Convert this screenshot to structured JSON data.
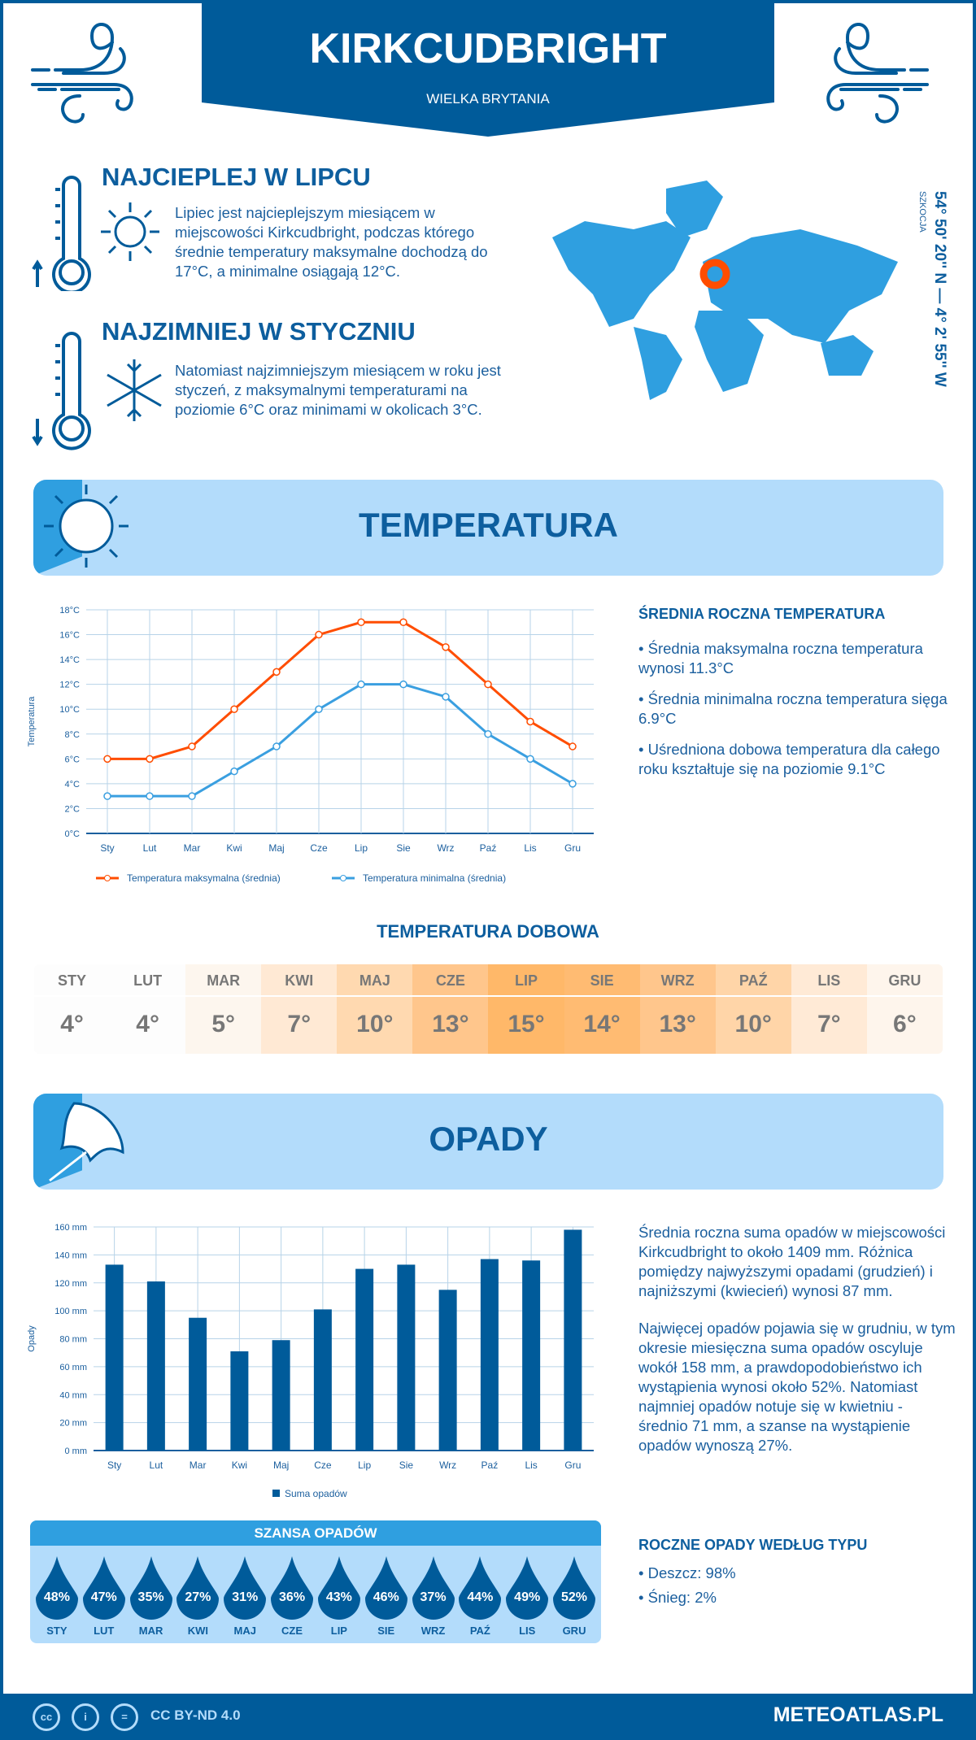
{
  "header": {
    "city": "KIRKCUDBRIGHT",
    "country": "WIELKA BRYTANIA"
  },
  "warmest": {
    "title": "NAJCIEPLEJ W LIPCU",
    "text": "Lipiec jest najcieplejszym miesiącem w miejscowości Kirkcudbright, podczas którego średnie temperatury maksymalne dochodzą do 17°C, a minimalne osiągają 12°C."
  },
  "coldest": {
    "title": "NAJZIMNIEJ W STYCZNIU",
    "text": "Natomiast najzimniejszym miesiącem w roku jest styczeń, z maksymalnymi temperaturami na poziomie 6°C oraz minimami w okolicach 3°C."
  },
  "map": {
    "coords": "54° 50' 20'' N — 4° 2' 55'' W",
    "region": "SZKOCJA",
    "marker_color": "#ff4d00"
  },
  "temp_section": {
    "title": "TEMPERATURA"
  },
  "temp_summary": {
    "heading": "ŚREDNIA ROCZNA TEMPERATURA",
    "items": [
      "• Średnia maksymalna roczna temperatura wynosi 11.3°C",
      "• Średnia minimalna roczna temperatura sięga 6.9°C",
      "• Uśredniona dobowa temperatura dla całego roku kształtuje się na poziomie 9.1°C"
    ]
  },
  "daily": {
    "title": "TEMPERATURA DOBOWA",
    "months": [
      "STY",
      "LUT",
      "MAR",
      "KWI",
      "MAJ",
      "CZE",
      "LIP",
      "SIE",
      "WRZ",
      "PAŹ",
      "LIS",
      "GRU"
    ],
    "values": [
      "4°",
      "4°",
      "5°",
      "7°",
      "10°",
      "13°",
      "15°",
      "14°",
      "13°",
      "10°",
      "7°",
      "6°"
    ],
    "colors": [
      "#fdfdfd",
      "#fdfdfd",
      "#fdf6ee",
      "#ffe9d4",
      "#ffd9b0",
      "#ffc68c",
      "#ffb869",
      "#ffbb72",
      "#ffc68c",
      "#ffd5a8",
      "#ffead6",
      "#fef5ec"
    ]
  },
  "rain_section": {
    "title": "OPADY"
  },
  "rain_summary": {
    "p1": "Średnia roczna suma opadów w miejscowości Kirkcudbright to około 1409 mm. Różnica pomiędzy najwyższymi opadami (grudzień) i najniższymi (kwiecień) wynosi 87 mm.",
    "p2": "Najwięcej opadów pojawia się w grudniu, w tym okresie miesięczna suma opadów oscyluje wokół 158 mm, a prawdopodobieństwo ich wystąpienia wynosi około 52%. Natomiast najmniej opadów notuje się w kwietniu - średnio 71 mm, a szanse na wystąpienie opadów wynoszą 27%."
  },
  "chance": {
    "title": "SZANSA OPADÓW",
    "months": [
      "STY",
      "LUT",
      "MAR",
      "KWI",
      "MAJ",
      "CZE",
      "LIP",
      "SIE",
      "WRZ",
      "PAŹ",
      "LIS",
      "GRU"
    ],
    "values": [
      "48%",
      "47%",
      "35%",
      "27%",
      "31%",
      "36%",
      "43%",
      "46%",
      "37%",
      "44%",
      "49%",
      "52%"
    ]
  },
  "rain_type": {
    "heading": "ROCZNE OPADY WEDŁUG TYPU",
    "items": [
      "• Deszcz: 98%",
      "• Śnieg: 2%"
    ]
  },
  "footer": {
    "license": "CC BY-ND 4.0",
    "brand": "METEOATLAS.PL",
    "icons": [
      "cc-icon",
      "by-icon",
      "nd-icon"
    ]
  },
  "chart_data": [
    {
      "type": "line",
      "categories": [
        "Sty",
        "Lut",
        "Mar",
        "Kwi",
        "Maj",
        "Cze",
        "Lip",
        "Sie",
        "Wrz",
        "Paź",
        "Lis",
        "Gru"
      ],
      "series": [
        {
          "name": "Temperatura maksymalna (średnia)",
          "values": [
            6,
            6,
            7,
            10,
            13,
            16,
            17,
            17,
            15,
            12,
            9,
            7
          ],
          "color": "#ff4d00"
        },
        {
          "name": "Temperatura minimalna (średnia)",
          "values": [
            3,
            3,
            3,
            5,
            7,
            10,
            12,
            12,
            11,
            8,
            6,
            4
          ],
          "color": "#3a9fe0"
        }
      ],
      "ylabel": "Temperatura",
      "ylim": [
        0,
        18
      ],
      "yticks": [
        "0°C",
        "2°C",
        "4°C",
        "6°C",
        "8°C",
        "10°C",
        "12°C",
        "14°C",
        "16°C",
        "18°C"
      ],
      "grid": true,
      "legend": "bottom"
    },
    {
      "type": "bar",
      "categories": [
        "Sty",
        "Lut",
        "Mar",
        "Kwi",
        "Maj",
        "Cze",
        "Lip",
        "Sie",
        "Wrz",
        "Paź",
        "Lis",
        "Gru"
      ],
      "series": [
        {
          "name": "Suma opadów",
          "values": [
            133,
            121,
            95,
            71,
            79,
            101,
            130,
            133,
            115,
            137,
            136,
            158
          ],
          "color": "#005b9a"
        }
      ],
      "ylabel": "Opady",
      "ylim": [
        0,
        160
      ],
      "yticks": [
        "0 mm",
        "20 mm",
        "40 mm",
        "60 mm",
        "80 mm",
        "100 mm",
        "120 mm",
        "140 mm",
        "160 mm"
      ],
      "grid": true,
      "legend": "bottom"
    }
  ]
}
